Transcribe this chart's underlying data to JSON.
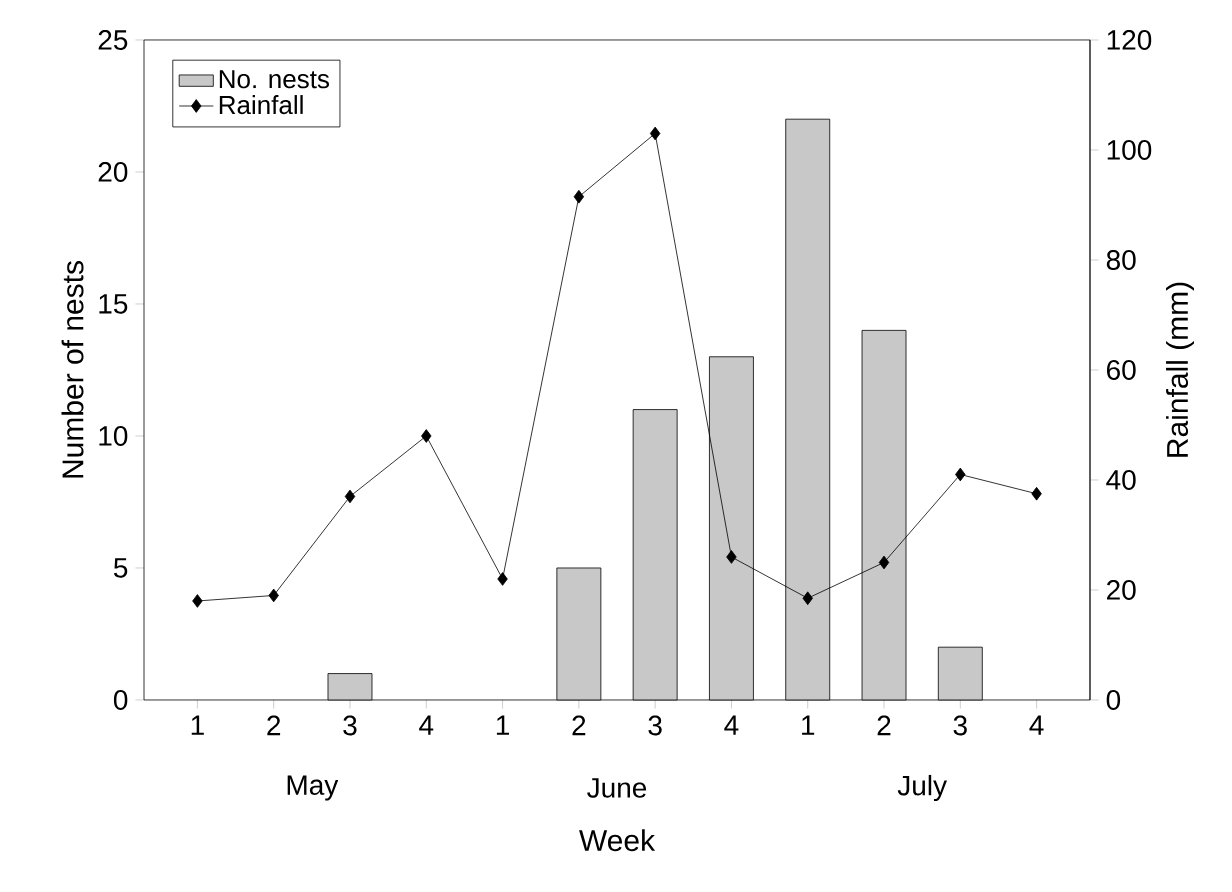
{
  "chart_data": {
    "type": "bar",
    "categories": [
      "1",
      "2",
      "3",
      "4",
      "1",
      "2",
      "3",
      "4",
      "1",
      "2",
      "3",
      "4"
    ],
    "series": [
      {
        "name": "No. nests",
        "color": "#c8c8c8",
        "values": [
          0,
          0,
          1,
          0,
          0,
          5,
          11,
          13,
          22,
          14,
          2,
          0
        ]
      },
      {
        "name": "Rainfall",
        "type": "line",
        "axis": "y2",
        "color": "#000000",
        "marker": "diamond",
        "values": [
          18,
          19,
          37,
          48,
          22,
          91.5,
          103,
          26,
          18.5,
          25,
          41,
          37.5
        ]
      }
    ],
    "xlabel": "Week",
    "ylabel": "Number of nests",
    "y2label": "Rainfall (mm)",
    "annotations": [
      "May",
      "June",
      "July"
    ],
    "ylim": [
      0,
      25
    ],
    "yticks": [
      0,
      5,
      10,
      15,
      20,
      25
    ],
    "y2lim": [
      0,
      120
    ],
    "y2ticks": [
      0,
      20,
      40,
      60,
      80,
      100,
      120
    ],
    "legend": "top left",
    "grid": false
  }
}
